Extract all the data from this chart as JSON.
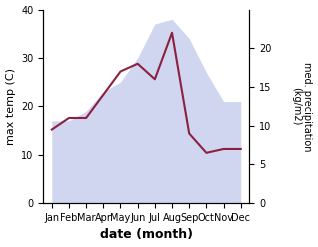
{
  "months": [
    "Jan",
    "Feb",
    "Mar",
    "Apr",
    "May",
    "Jun",
    "Jul",
    "Aug",
    "Sep",
    "Oct",
    "Nov",
    "Dec"
  ],
  "max_temp": [
    17,
    17,
    19,
    23,
    25,
    30,
    37,
    38,
    34,
    27,
    21,
    21
  ],
  "med_precip": [
    9.5,
    11,
    11,
    14,
    17,
    18,
    16,
    22,
    9,
    6.5,
    7,
    7
  ],
  "temp_color_fill": "#b8bfe8",
  "precip_color": "#8b2040",
  "fill_alpha": 0.65,
  "ylim_temp": [
    0,
    40
  ],
  "ylim_precip": [
    0,
    25
  ],
  "yticks_temp": [
    0,
    10,
    20,
    30,
    40
  ],
  "yticks_precip": [
    0,
    5,
    10,
    15,
    20
  ],
  "xlabel": "date (month)",
  "ylabel_left": "max temp (C)",
  "ylabel_right": "med. precipitation\n(kg/m2)",
  "figsize": [
    3.18,
    2.47
  ],
  "dpi": 100
}
